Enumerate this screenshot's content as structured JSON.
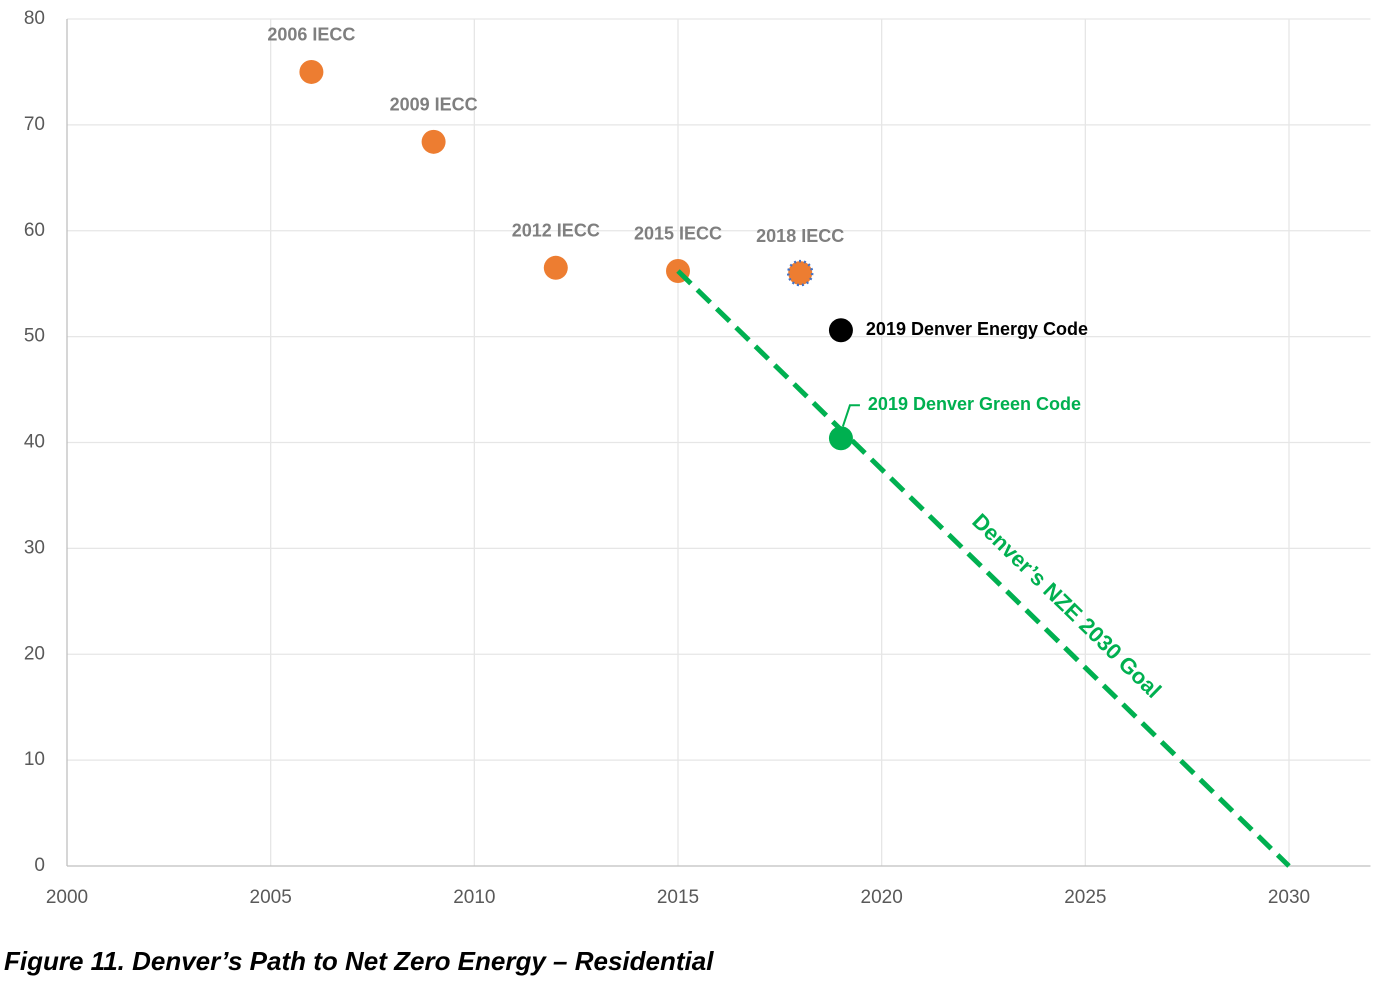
{
  "chart_data": {
    "type": "scatter",
    "caption": "Figure 11. Denver’s Path to Net Zero Energy – Residential",
    "xlim": [
      2000,
      2032
    ],
    "xticks": [
      2000,
      2005,
      2010,
      2015,
      2020,
      2025,
      2030
    ],
    "ylim": [
      0,
      80
    ],
    "yticks": [
      0,
      10,
      20,
      30,
      40,
      50,
      60,
      70,
      80
    ],
    "grid": true,
    "series": [
      {
        "name": "2006 IECC",
        "color": "#ed7d31",
        "label_color": "#7f7f7f",
        "x": [
          2006
        ],
        "values": [
          75
        ]
      },
      {
        "name": "2009 IECC",
        "color": "#ed7d31",
        "label_color": "#7f7f7f",
        "x": [
          2009
        ],
        "values": [
          68.4
        ]
      },
      {
        "name": "2012 IECC",
        "color": "#ed7d31",
        "label_color": "#7f7f7f",
        "x": [
          2012
        ],
        "values": [
          56.5
        ]
      },
      {
        "name": "2015 IECC",
        "color": "#ed7d31",
        "label_color": "#7f7f7f",
        "x": [
          2015
        ],
        "values": [
          56.2
        ]
      },
      {
        "name": "2018 IECC",
        "color": "#ed7d31",
        "label_color": "#7f7f7f",
        "outline": "#4472c4",
        "x": [
          2018
        ],
        "values": [
          56
        ]
      },
      {
        "name": "2019 Denver Energy Code",
        "color": "#000000",
        "label_color": "#000000",
        "x": [
          2019
        ],
        "values": [
          50.6
        ]
      },
      {
        "name": "2019 Denver Green Code",
        "color": "#00b050",
        "label_color": "#00b050",
        "x": [
          2019
        ],
        "values": [
          40.4
        ]
      },
      {
        "name": "Denver’s NZE 2030 Goal",
        "color": "#00b050",
        "label_color": "#00b050",
        "line": "dashed",
        "x": [
          2015,
          2030
        ],
        "values": [
          56.2,
          0
        ]
      }
    ]
  }
}
